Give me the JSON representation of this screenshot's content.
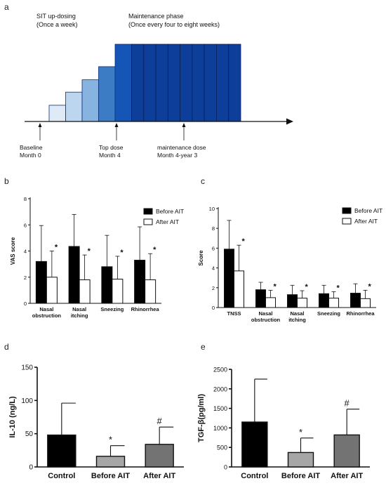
{
  "panels": {
    "a": {
      "letter": "a",
      "phase1_title": "SIT up-dosing",
      "phase1_sub": "(Once a week)",
      "phase2_title": "Maintenance phase",
      "phase2_sub": "(Once every four to eight weeks)",
      "marker1_l1": "Baseline",
      "marker1_l2": "Month 0",
      "marker2_l1": "Top dose",
      "marker2_l2": "Month 4",
      "marker3_l1": "maintenance dose",
      "marker3_l2": "Month 4-year 3",
      "up_steps": [
        0.21,
        0.38,
        0.54,
        0.71,
        1.0
      ],
      "maintenance_blocks": 9,
      "colors": {
        "step1": "#deebf7",
        "step2": "#bcd6ef",
        "step3": "#86b3e0",
        "step4": "#3c7cc4",
        "step5": "#1555b5",
        "maintenance": "#0d3f9a"
      }
    },
    "b": {
      "letter": "b"
    },
    "c": {
      "letter": "c"
    },
    "d": {
      "letter": "d"
    },
    "e": {
      "letter": "e"
    }
  },
  "chart_data": [
    {
      "id": "b",
      "type": "bar",
      "ylabel": "VAS score",
      "ylim": [
        0,
        8
      ],
      "yticks": [
        "0",
        "2",
        "4",
        "6",
        "8"
      ],
      "categories": [
        [
          "Nasal",
          "obstruction"
        ],
        [
          "Nasal",
          "itching"
        ],
        [
          "Sneezing"
        ],
        [
          "Rhinorrhea"
        ]
      ],
      "series": [
        {
          "name": "Before AIT",
          "color": "#000000",
          "values": [
            3.2,
            4.35,
            2.8,
            3.3
          ],
          "errors": [
            2.75,
            2.45,
            2.4,
            2.55
          ]
        },
        {
          "name": "After AIT",
          "color": "#ffffff",
          "values": [
            2.0,
            1.8,
            1.85,
            1.8
          ],
          "errors": [
            2.0,
            1.9,
            1.75,
            2.0
          ]
        }
      ],
      "annotations": [
        "*",
        "*",
        "*",
        "*"
      ],
      "legend": "top-right"
    },
    {
      "id": "c",
      "type": "bar",
      "ylabel": "Score",
      "ylim": [
        0,
        10
      ],
      "yticks": [
        "0",
        "2",
        "4",
        "6",
        "8",
        "10"
      ],
      "categories": [
        [
          "TNSS"
        ],
        [
          "Nasal",
          "obstruction"
        ],
        [
          "Nasal",
          "itching"
        ],
        [
          "Sneezing"
        ],
        [
          "Rhinorrhea"
        ]
      ],
      "series": [
        {
          "name": "Before AIT",
          "color": "#000000",
          "values": [
            5.9,
            1.8,
            1.3,
            1.4,
            1.45
          ],
          "errors": [
            2.9,
            0.75,
            0.95,
            0.85,
            0.95
          ]
        },
        {
          "name": "After AIT",
          "color": "#ffffff",
          "values": [
            3.7,
            1.0,
            0.95,
            0.95,
            0.9
          ],
          "errors": [
            2.6,
            0.75,
            0.75,
            0.65,
            0.85
          ]
        }
      ],
      "annotations": [
        "*",
        "*",
        "*",
        "*",
        "*"
      ],
      "legend": "top-right"
    },
    {
      "id": "d",
      "type": "bar",
      "ylabel": "IL-10 (ng/L)",
      "ylim": [
        0,
        150
      ],
      "yticks": [
        "0",
        "50",
        "100",
        "150"
      ],
      "categories": [
        "Control",
        "Before AIT",
        "After AIT"
      ],
      "values": [
        48,
        16,
        34
      ],
      "errors": [
        48,
        16,
        26
      ],
      "colors": [
        "#000000",
        "#a6a6a6",
        "#737373"
      ],
      "annotations": [
        "",
        "*",
        "#"
      ]
    },
    {
      "id": "e",
      "type": "bar",
      "ylabel": "TGF-β(pg/ml)",
      "ylim": [
        0,
        2500
      ],
      "yticks": [
        "0",
        "500",
        "1000",
        "1500",
        "2000",
        "2500"
      ],
      "categories": [
        "Control",
        "Before AIT",
        "After AIT"
      ],
      "values": [
        1150,
        370,
        820
      ],
      "errors": [
        1100,
        370,
        660
      ],
      "colors": [
        "#000000",
        "#a6a6a6",
        "#737373"
      ],
      "annotations": [
        "",
        "*",
        "#"
      ]
    }
  ]
}
